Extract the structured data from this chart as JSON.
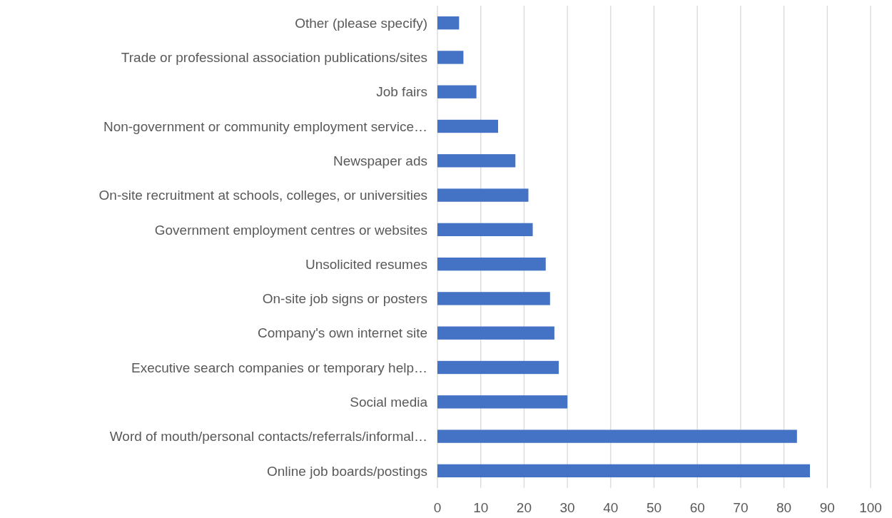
{
  "chart_data": {
    "type": "bar",
    "orientation": "horizontal",
    "categories": [
      "Other (please specify)",
      "Trade or professional association publications/sites",
      "Job fairs",
      "Non-government or community employment service…",
      "Newspaper ads",
      "On-site recruitment at schools, colleges, or universities",
      "Government employment centres or websites",
      "Unsolicited resumes",
      "On-site job signs or posters",
      "Company's own internet site",
      "Executive search companies or temporary help…",
      "Social media",
      "Word of mouth/personal contacts/referrals/informal…",
      "Online job boards/postings"
    ],
    "values": [
      5,
      6,
      9,
      14,
      18,
      21,
      22,
      25,
      26,
      27,
      28,
      30,
      83,
      86
    ],
    "color": "#4472c4",
    "xlim": [
      0,
      100
    ],
    "xticks": [
      0,
      10,
      20,
      30,
      40,
      50,
      60,
      70,
      80,
      90,
      100
    ],
    "grid": "x"
  }
}
